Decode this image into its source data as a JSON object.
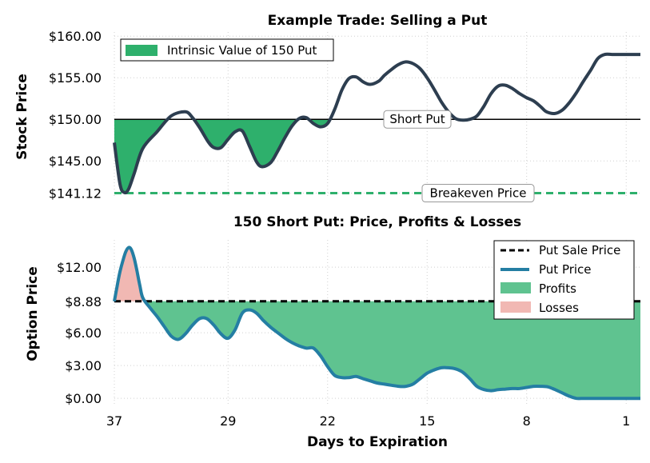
{
  "chart_data": [
    {
      "type": "area",
      "title": "Example Trade: Selling a Put",
      "xlabel": "",
      "ylabel": "Stock Price",
      "x_reversed": true,
      "xlim": [
        37,
        0
      ],
      "ylim": [
        140.5,
        160.5
      ],
      "yticks": [
        141.12,
        145.0,
        150.0,
        155.0,
        160.0
      ],
      "ytick_labels": [
        "$141.12",
        "$145.00",
        "$150.00",
        "$155.00",
        "$160.00"
      ],
      "grid": true,
      "legend_position": "top-left",
      "legend": [
        "Intrinsic Value of 150 Put"
      ],
      "strike": 150.0,
      "breakeven": 141.12,
      "annotations": {
        "strike_label": "Short Put",
        "breakeven_label": "Breakeven Price"
      },
      "colors": {
        "price_line": "#2d3e50",
        "intrinsic_fill": "#2eb06c",
        "breakeven_line": "#2eb06c",
        "strike_line": "#000000"
      },
      "series": [
        {
          "name": "Stock Price",
          "x": [
            37,
            36.6,
            36.3,
            36,
            35.6,
            35,
            34,
            33,
            32,
            31.5,
            31,
            30.4,
            30,
            29.5,
            29,
            28.5,
            28,
            27.5,
            27,
            26.6,
            26,
            25.5,
            25,
            24.5,
            24,
            23.5,
            23,
            22.5,
            22,
            21.5,
            21,
            20.5,
            20,
            19.5,
            19,
            18.4,
            18,
            17.5,
            17,
            16.5,
            16,
            15.5,
            15,
            14.5,
            14,
            13.5,
            13,
            12.5,
            12,
            11.5,
            11,
            10.5,
            10,
            9.5,
            9,
            8.5,
            8,
            7.5,
            7,
            6.6,
            6,
            5.5,
            5,
            4.5,
            4,
            3.5,
            3,
            2.5,
            2,
            1.5,
            1,
            0.5,
            0
          ],
          "values": [
            147.2,
            142.2,
            141.2,
            141.6,
            143.5,
            146.5,
            148.5,
            150.4,
            150.9,
            150.2,
            149.0,
            147.3,
            146.6,
            146.6,
            147.6,
            148.5,
            148.6,
            146.8,
            144.9,
            144.3,
            144.8,
            146.2,
            147.8,
            149.2,
            150.1,
            150.2,
            149.5,
            149.1,
            149.5,
            151.2,
            153.5,
            154.9,
            155.1,
            154.5,
            154.2,
            154.6,
            155.3,
            156.0,
            156.6,
            156.9,
            156.7,
            156.1,
            155.0,
            153.6,
            152.1,
            150.9,
            150.1,
            149.9,
            150.0,
            150.4,
            151.6,
            153.1,
            154.0,
            154.1,
            153.7,
            153.1,
            152.6,
            152.2,
            151.5,
            150.9,
            150.7,
            151.1,
            152.0,
            153.2,
            154.6,
            155.9,
            157.3,
            157.8,
            157.8,
            157.8,
            157.8,
            157.8,
            157.8
          ]
        }
      ]
    },
    {
      "type": "area",
      "title": "150 Short Put: Price, Profits & Losses",
      "xlabel": "Days to Expiration",
      "ylabel": "Option Price",
      "x_reversed": true,
      "xlim": [
        37,
        0
      ],
      "ylim": [
        -0.5,
        14.5
      ],
      "xticks": [
        37,
        29,
        22,
        15,
        8,
        1
      ],
      "yticks": [
        0.0,
        3.0,
        6.0,
        8.88,
        12.0
      ],
      "ytick_labels": [
        "$0.00",
        "$3.00",
        "$6.00",
        "$8.88",
        "$12.00"
      ],
      "grid": true,
      "legend_position": "top-right",
      "legend": [
        "Put Sale Price",
        "Put Price",
        "Profits",
        "Losses"
      ],
      "put_sale_price": 8.88,
      "colors": {
        "put_line": "#247ea3",
        "sale_line": "#000000",
        "profits": "#5fc390",
        "losses": "#f1b8b3"
      },
      "series": [
        {
          "name": "Put Price",
          "x": [
            37,
            36.8,
            36.6,
            36.4,
            36.2,
            36,
            35.8,
            35.6,
            35.4,
            35.2,
            35,
            34.5,
            34,
            33.5,
            33,
            32.5,
            32,
            31.5,
            31,
            30.5,
            30,
            29.5,
            29,
            28.5,
            28,
            27.5,
            27,
            26.5,
            26,
            25.5,
            25,
            24.5,
            24,
            23.5,
            23,
            22.5,
            22,
            21.5,
            21,
            20.5,
            20,
            19.5,
            19,
            18.5,
            18,
            17.5,
            17,
            16.5,
            16,
            15.5,
            15,
            14.5,
            14,
            13.5,
            13,
            12.5,
            12,
            11.5,
            11,
            10.5,
            10,
            9.5,
            9,
            8.5,
            8,
            7.5,
            7,
            6.5,
            6,
            5.5,
            5,
            4.5,
            4,
            3.5,
            3,
            2.5,
            2,
            1.5,
            1,
            0.5,
            0
          ],
          "values": [
            8.88,
            10.3,
            11.6,
            12.6,
            13.4,
            13.8,
            13.6,
            12.8,
            11.6,
            10.3,
            9.2,
            8.3,
            7.5,
            6.6,
            5.7,
            5.4,
            5.9,
            6.7,
            7.3,
            7.3,
            6.7,
            5.9,
            5.5,
            6.3,
            7.8,
            8.1,
            7.8,
            7.1,
            6.5,
            6.0,
            5.5,
            5.1,
            4.8,
            4.6,
            4.6,
            3.9,
            2.9,
            2.1,
            1.9,
            1.9,
            2.0,
            1.8,
            1.6,
            1.4,
            1.3,
            1.2,
            1.1,
            1.1,
            1.3,
            1.8,
            2.3,
            2.6,
            2.8,
            2.8,
            2.7,
            2.4,
            1.8,
            1.1,
            0.8,
            0.7,
            0.8,
            0.85,
            0.9,
            0.9,
            1.0,
            1.1,
            1.1,
            1.05,
            0.8,
            0.5,
            0.2,
            0.0,
            0.0,
            0.0,
            0.0,
            0.0,
            0.0,
            0.0,
            0.0,
            0.0,
            0.0
          ]
        }
      ]
    }
  ]
}
